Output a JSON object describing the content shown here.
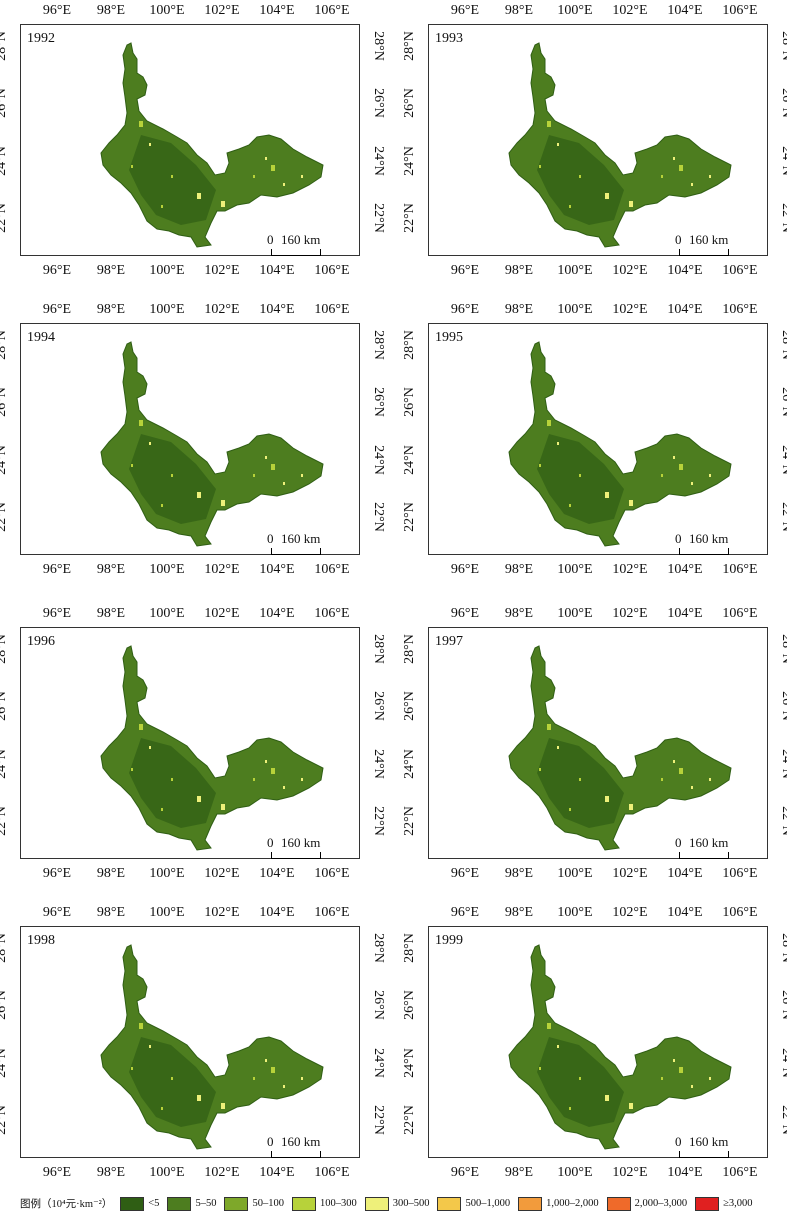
{
  "axes": {
    "lon_labels": [
      "96°E",
      "98°E",
      "100°E",
      "102°E",
      "104°E",
      "106°E"
    ],
    "lat_labels": [
      "22°N",
      "24°N",
      "26°N",
      "28°N"
    ]
  },
  "panels": [
    {
      "year": "1992"
    },
    {
      "year": "1993"
    },
    {
      "year": "1994"
    },
    {
      "year": "1995"
    },
    {
      "year": "1996"
    },
    {
      "year": "1997"
    },
    {
      "year": "1998"
    },
    {
      "year": "1999"
    }
  ],
  "scale_bar": {
    "zero": "0",
    "value": "160 km"
  },
  "legend": {
    "title": "图例（10⁴元·km⁻²）",
    "items": [
      {
        "label": "<5",
        "color": "#2f5e14"
      },
      {
        "label": "5–50",
        "color": "#4d7d1f"
      },
      {
        "label": "50–100",
        "color": "#7ea82a"
      },
      {
        "label": "100–300",
        "color": "#b7d23a"
      },
      {
        "label": "300–500",
        "color": "#eef07a"
      },
      {
        "label": "500–1,000",
        "color": "#f3c84a"
      },
      {
        "label": "1,000–2,000",
        "color": "#f29b3c"
      },
      {
        "label": "2,000–3,000",
        "color": "#ef6a2a"
      },
      {
        "label": "≥3,000",
        "color": "#e02020"
      }
    ]
  }
}
